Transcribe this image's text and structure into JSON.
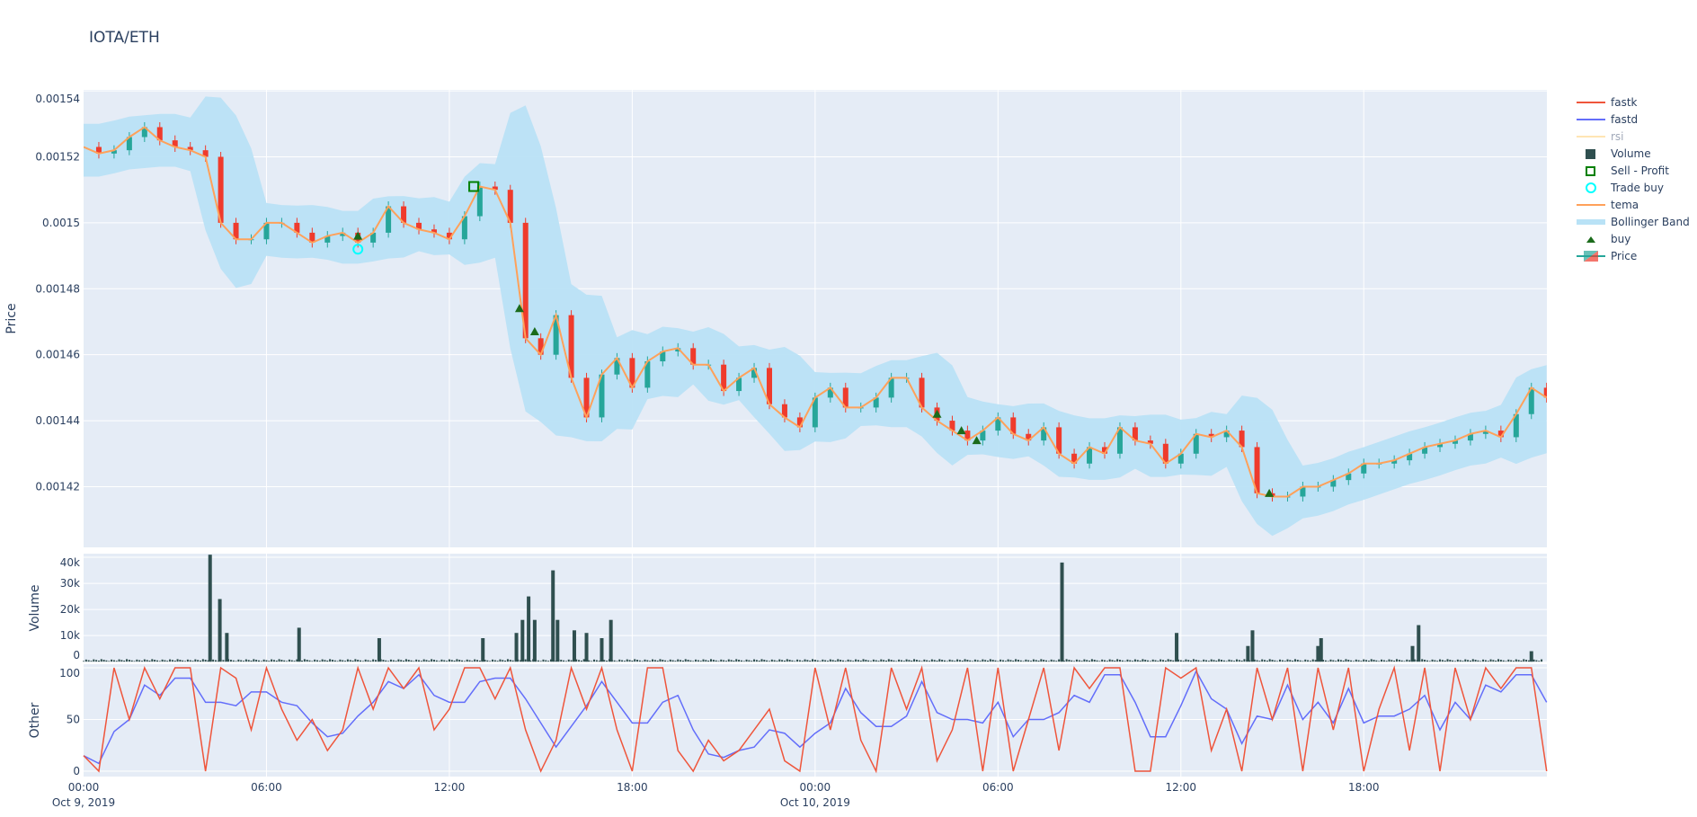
{
  "title": "IOTA/ETH",
  "colors": {
    "fastk": "#ef553b",
    "fastd": "#636efa",
    "rsi": "#ffe5b4",
    "volume": "#2f4f4f",
    "sell": "#008000",
    "tradebuy": "#00ffff",
    "tema": "#ffa15a",
    "bb": "#b9e2f6",
    "buy": "#1b6b1b",
    "inc": "#26a69a",
    "dec": "#ef3b2c",
    "plot_bg": "#e5ecf6",
    "grid": "#ffffff"
  },
  "legend": [
    {
      "key": "fastk",
      "label": "fastk",
      "icon": "line"
    },
    {
      "key": "fastd",
      "label": "fastd",
      "icon": "line"
    },
    {
      "key": "rsi",
      "label": "rsi",
      "icon": "line",
      "hidden": true
    },
    {
      "key": "volume",
      "label": "Volume",
      "icon": "square"
    },
    {
      "key": "sell",
      "label": "Sell - Profit",
      "icon": "square-open"
    },
    {
      "key": "tradebuy",
      "label": "Trade buy",
      "icon": "circle-open"
    },
    {
      "key": "tema",
      "label": "tema",
      "icon": "line"
    },
    {
      "key": "bb",
      "label": "Bollinger Band",
      "icon": "band"
    },
    {
      "key": "buy",
      "label": "buy",
      "icon": "triangle-up"
    },
    {
      "key": "price",
      "label": "Price",
      "icon": "candlestick"
    }
  ],
  "chart_data": {
    "type": "candlestick",
    "x_unit": "hours since Oct 9, 2019 00:00",
    "x_step_hours": 0.5,
    "xlim": [
      0,
      47.92
    ],
    "x_ticks": [
      {
        "h": 0,
        "label": "00:00",
        "sub": "Oct 9, 2019"
      },
      {
        "h": 6,
        "label": "06:00"
      },
      {
        "h": 12,
        "label": "12:00"
      },
      {
        "h": 18,
        "label": "18:00"
      },
      {
        "h": 24,
        "label": "00:00",
        "sub": "Oct 10, 2019"
      },
      {
        "h": 30,
        "label": "06:00"
      },
      {
        "h": 36,
        "label": "12:00"
      },
      {
        "h": 42,
        "label": "18:00"
      }
    ],
    "price": {
      "ylabel": "Price",
      "ylim": [
        0.0014016,
        0.0015403
      ],
      "y_ticks": [
        {
          "v": 0.00142,
          "label": "0.00142"
        },
        {
          "v": 0.00144,
          "label": "0.00144"
        },
        {
          "v": 0.00146,
          "label": "0.00146"
        },
        {
          "v": 0.00148,
          "label": "0.00148"
        },
        {
          "v": 0.0015,
          "label": "0.0015"
        },
        {
          "v": 0.00152,
          "label": "0.00152"
        },
        {
          "v": 0.00154,
          "label": "0.00154"
        }
      ],
      "close": [
        0.001523,
        0.001521,
        0.001522,
        0.001526,
        0.001529,
        0.001525,
        0.001523,
        0.001522,
        0.00152,
        0.0015,
        0.001495,
        0.001495,
        0.0015,
        0.0015,
        0.001497,
        0.001494,
        0.001496,
        0.001497,
        0.001494,
        0.001497,
        0.001505,
        0.0015,
        0.001498,
        0.001497,
        0.001495,
        0.001502,
        0.001511,
        0.00151,
        0.0015,
        0.001465,
        0.00146,
        0.001472,
        0.001453,
        0.001441,
        0.001454,
        0.001459,
        0.00145,
        0.001458,
        0.001461,
        0.001462,
        0.001457,
        0.001457,
        0.001449,
        0.001453,
        0.001456,
        0.001445,
        0.001441,
        0.001438,
        0.001447,
        0.00145,
        0.001444,
        0.001444,
        0.001447,
        0.001453,
        0.001453,
        0.001444,
        0.00144,
        0.001437,
        0.001434,
        0.001437,
        0.001441,
        0.001436,
        0.001434,
        0.001438,
        0.00143,
        0.001427,
        0.001432,
        0.00143,
        0.001438,
        0.001434,
        0.001433,
        0.001427,
        0.00143,
        0.001436,
        0.001435,
        0.001437,
        0.001432,
        0.001418,
        0.001417,
        0.001417,
        0.00142,
        0.00142,
        0.001422,
        0.001424,
        0.001427,
        0.001427,
        0.001428,
        0.00143,
        0.001432,
        0.001433,
        0.001434,
        0.001436,
        0.001437,
        0.001435,
        0.001442,
        0.00145,
        0.001447
      ],
      "buy": [
        [
          9.0,
          0.001496
        ],
        [
          14.3,
          0.001474
        ],
        [
          14.8,
          0.001467
        ],
        [
          28.0,
          0.001442
        ],
        [
          28.8,
          0.001437
        ],
        [
          29.3,
          0.001434
        ],
        [
          38.9,
          0.001418
        ]
      ],
      "trade_buy": [
        [
          9.0,
          0.001492
        ]
      ],
      "sell_profit": [
        [
          12.8,
          0.001511
        ]
      ]
    },
    "volume": {
      "ylabel": "Volume",
      "ylim": [
        -300,
        41400
      ],
      "y_ticks": [
        {
          "v": 0,
          "label": "0"
        },
        {
          "v": 10000,
          "label": "10k"
        },
        {
          "v": 20000,
          "label": "20k"
        },
        {
          "v": 30000,
          "label": "30k"
        },
        {
          "v": 40000,
          "label": "40k"
        }
      ],
      "bars": [
        [
          4.15,
          41000
        ],
        [
          4.47,
          24000
        ],
        [
          4.7,
          11000
        ],
        [
          7.07,
          13000
        ],
        [
          9.7,
          9000
        ],
        [
          14.2,
          11000
        ],
        [
          14.4,
          16000
        ],
        [
          14.6,
          25000
        ],
        [
          14.8,
          16000
        ],
        [
          15.4,
          35000
        ],
        [
          15.55,
          16000
        ],
        [
          16.1,
          12000
        ],
        [
          16.5,
          11000
        ],
        [
          17.3,
          16000
        ],
        [
          17.0,
          9000
        ],
        [
          13.1,
          9000
        ],
        [
          32.1,
          38000
        ],
        [
          35.86,
          11000
        ],
        [
          38.35,
          12000
        ],
        [
          38.2,
          6000
        ],
        [
          40.6,
          9000
        ],
        [
          40.5,
          6000
        ],
        [
          43.8,
          14000
        ],
        [
          43.6,
          6000
        ],
        [
          47.5,
          4000
        ]
      ],
      "baseline": 800
    },
    "other": {
      "ylabel": "Other",
      "ylim": [
        -5.2,
        103.5
      ],
      "y_ticks": [
        {
          "v": 0,
          "label": "0"
        },
        {
          "v": 50,
          "label": "50"
        },
        {
          "v": 100,
          "label": "100"
        }
      ],
      "fastk": [
        15,
        0,
        100,
        50,
        100,
        70,
        100,
        100,
        0,
        100,
        90,
        40,
        100,
        60,
        30,
        50,
        20,
        40,
        100,
        60,
        100,
        80,
        100,
        40,
        60,
        100,
        100,
        70,
        100,
        40,
        0,
        30,
        100,
        60,
        100,
        40,
        0,
        100,
        100,
        20,
        0,
        30,
        10,
        20,
        40,
        60,
        10,
        0,
        100,
        40,
        100,
        30,
        0,
        100,
        60,
        100,
        10,
        40,
        100,
        0,
        100,
        0,
        50,
        100,
        20,
        100,
        80,
        100,
        100,
        0,
        0,
        100,
        90,
        100,
        20,
        60,
        0,
        100,
        50,
        100,
        0,
        100,
        40,
        100,
        0,
        60,
        100,
        20,
        100,
        0,
        100,
        50,
        100,
        80,
        100,
        100,
        0
      ]
    }
  }
}
